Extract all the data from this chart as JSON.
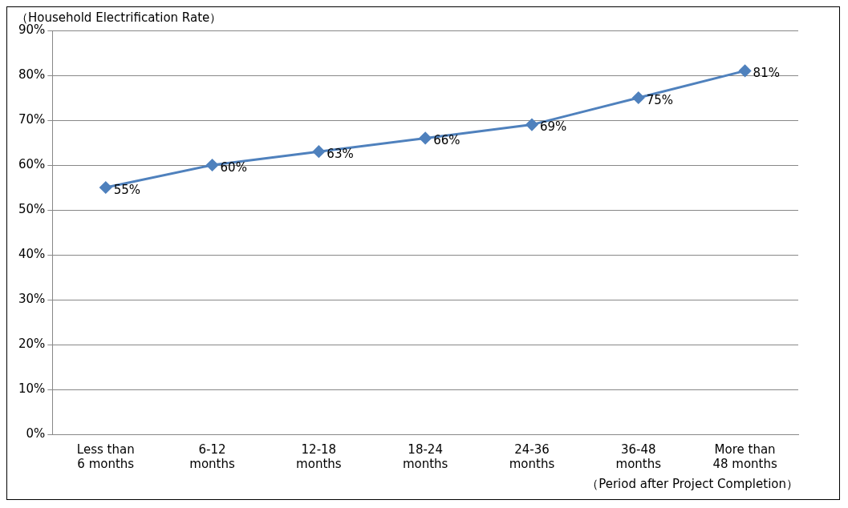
{
  "chart_data": {
    "type": "line",
    "title": "（Household Electrification Rate）",
    "xlabel": "（Period after Project Completion）",
    "categories": [
      "Less than 6 months",
      "6-12 months",
      "12-18 months",
      "18-24 months",
      "24-36 months",
      "36-48 months",
      "More than 48 months"
    ],
    "series": [
      {
        "color": "#4f81bd",
        "values": [
          55,
          60,
          63,
          66,
          69,
          75,
          81
        ],
        "value_labels": [
          "55%",
          "60%",
          "63%",
          "66%",
          "69%",
          "75%",
          "81%"
        ]
      }
    ],
    "ylim": [
      0,
      90
    ],
    "yticks": [
      {
        "value": 0,
        "label": "0%"
      },
      {
        "value": 10,
        "label": "10%"
      },
      {
        "value": 20,
        "label": "20%"
      },
      {
        "value": 30,
        "label": "30%"
      },
      {
        "value": 40,
        "label": "40%"
      },
      {
        "value": 50,
        "label": "50%"
      },
      {
        "value": 60,
        "label": "60%"
      },
      {
        "value": 70,
        "label": "70%"
      },
      {
        "value": 80,
        "label": "80%"
      },
      {
        "value": 90,
        "label": "90%"
      }
    ],
    "grid": "y",
    "legend": false,
    "marker": "diamond",
    "line_style": "solid"
  }
}
